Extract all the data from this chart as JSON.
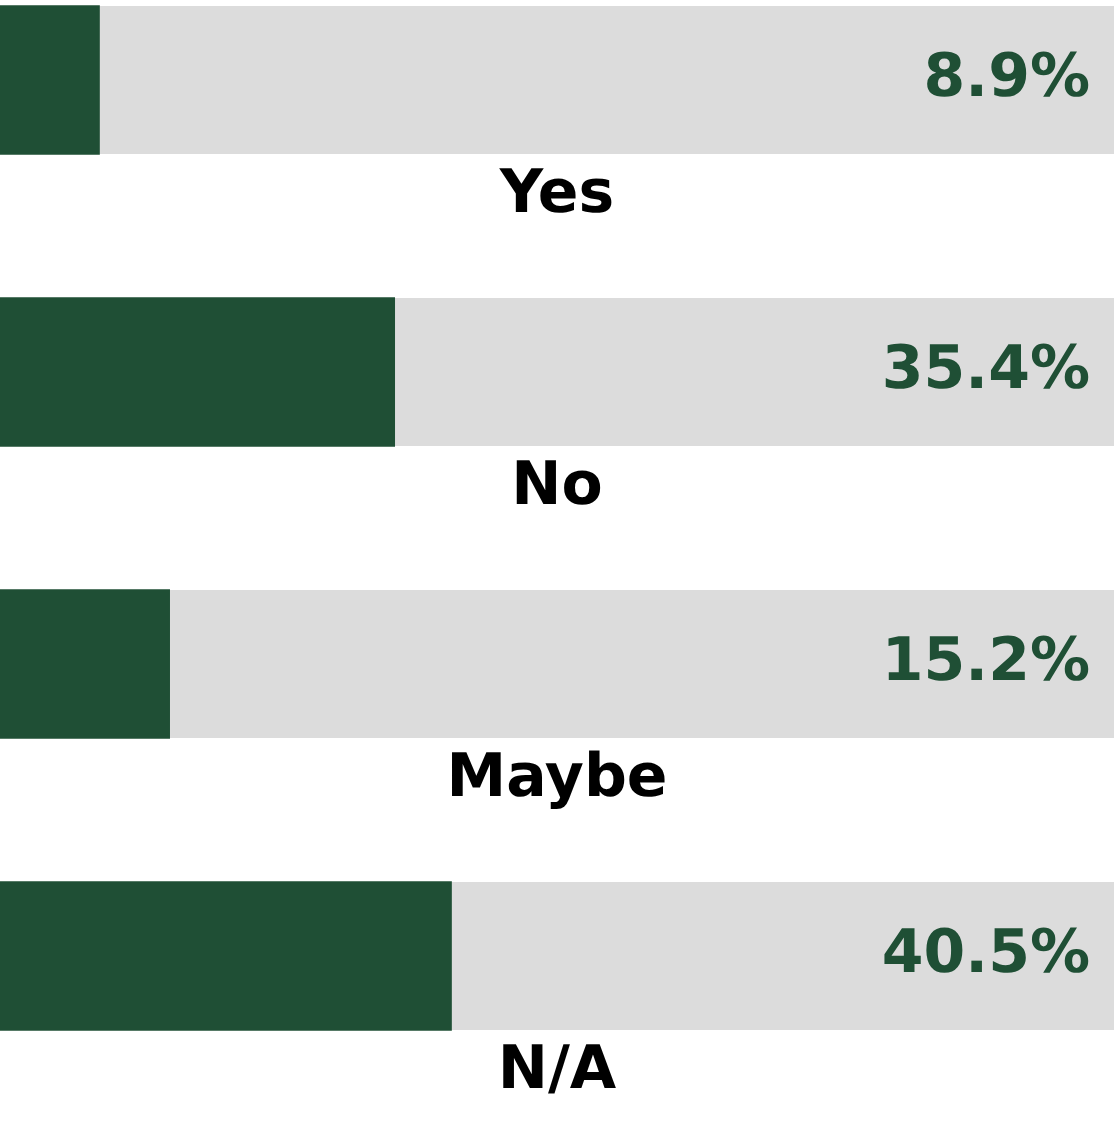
{
  "chart_data": {
    "type": "bar",
    "orientation": "horizontal",
    "categories": [
      "Yes",
      "No",
      "Maybe",
      "N/A"
    ],
    "values": [
      8.9,
      35.4,
      15.2,
      40.5
    ],
    "value_labels": [
      "8.9%",
      "35.4%",
      "15.2%",
      "40.5%"
    ],
    "color": "#1f4f35",
    "xlim": [
      0,
      100
    ],
    "tick_labels": false,
    "grid": false
  }
}
